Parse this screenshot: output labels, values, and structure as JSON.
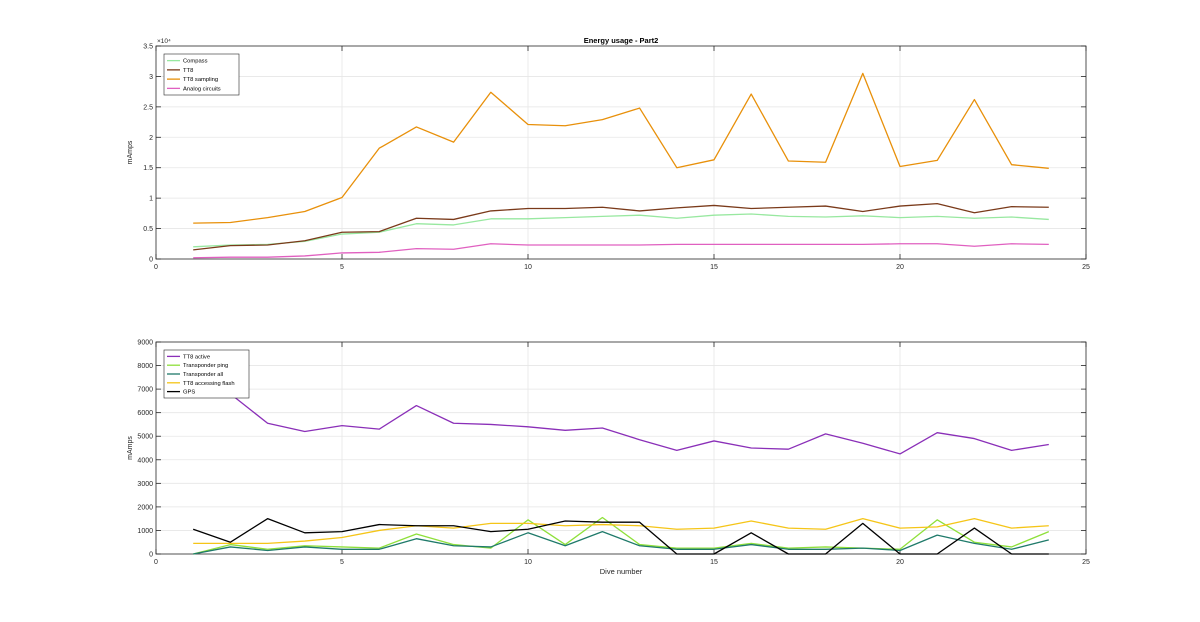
{
  "chart_data": [
    {
      "type": "line",
      "title": "Energy usage - Part2",
      "xlabel": "",
      "ylabel": "mAmps",
      "xlim": [
        0,
        25
      ],
      "ylim": [
        0,
        35000
      ],
      "x_ticks": [
        0,
        5,
        10,
        15,
        20,
        25
      ],
      "y_ticks": [
        0,
        5000,
        10000,
        15000,
        20000,
        25000,
        30000,
        35000
      ],
      "x_tick_labels": [
        "0",
        "5",
        "10",
        "15",
        "20",
        "25"
      ],
      "y_tick_labels": [
        "0",
        "0.5",
        "1",
        "1.5",
        "2",
        "2.5",
        "3",
        "3.5"
      ],
      "y_exponent_label": "×10⁴",
      "grid": true,
      "legend_position": "top-left",
      "x": [
        1,
        2,
        3,
        4,
        5,
        6,
        7,
        8,
        9,
        10,
        11,
        12,
        13,
        14,
        15,
        16,
        17,
        18,
        19,
        20,
        21,
        22,
        23,
        24
      ],
      "series": [
        {
          "name": "Compass",
          "color": "#98e8a0",
          "values": [
            2000,
            2300,
            2400,
            2900,
            4100,
            4400,
            5800,
            5600,
            6600,
            6600,
            6800,
            7000,
            7200,
            6700,
            7200,
            7400,
            7000,
            6900,
            7100,
            6800,
            7000,
            6700,
            6900,
            6500
          ]
        },
        {
          "name": "TT8",
          "color": "#7a3a1a",
          "values": [
            1500,
            2200,
            2300,
            3000,
            4400,
            4500,
            6700,
            6500,
            7900,
            8300,
            8300,
            8500,
            7900,
            8400,
            8800,
            8300,
            8500,
            8700,
            7800,
            8700,
            9100,
            7600,
            8600,
            8500
          ]
        },
        {
          "name": "TT8 sampling",
          "color": "#e8900a",
          "values": [
            5900,
            6000,
            6800,
            7800,
            10100,
            18200,
            21700,
            19200,
            27400,
            22100,
            21900,
            22900,
            24800,
            15000,
            16300,
            27100,
            16100,
            15900,
            30500,
            15200,
            16200,
            26200,
            15500,
            14900
          ]
        },
        {
          "name": "Analog circuits",
          "color": "#e060c0",
          "values": [
            200,
            300,
            300,
            500,
            1000,
            1100,
            1700,
            1600,
            2500,
            2300,
            2300,
            2300,
            2300,
            2400,
            2400,
            2400,
            2400,
            2400,
            2400,
            2500,
            2500,
            2100,
            2500,
            2400
          ]
        }
      ]
    },
    {
      "type": "line",
      "title": "",
      "xlabel": "Dive number",
      "ylabel": "mAmps",
      "xlim": [
        0,
        25
      ],
      "ylim": [
        0,
        9000
      ],
      "x_ticks": [
        0,
        5,
        10,
        15,
        20,
        25
      ],
      "y_ticks": [
        0,
        1000,
        2000,
        3000,
        4000,
        5000,
        6000,
        7000,
        8000,
        9000
      ],
      "x_tick_labels": [
        "0",
        "5",
        "10",
        "15",
        "20",
        "25"
      ],
      "y_tick_labels": [
        "0",
        "1000",
        "2000",
        "3000",
        "4000",
        "5000",
        "6000",
        "7000",
        "8000",
        "9000"
      ],
      "grid": true,
      "legend_position": "top-left",
      "x": [
        1,
        2,
        3,
        4,
        5,
        6,
        7,
        8,
        9,
        10,
        11,
        12,
        13,
        14,
        15,
        16,
        17,
        18,
        19,
        20,
        21,
        22,
        23,
        24
      ],
      "series": [
        {
          "name": "TT8 active",
          "color": "#8a2fb8",
          "values": [
            7200,
            6800,
            5550,
            5200,
            5450,
            5300,
            6300,
            5550,
            5500,
            5400,
            5250,
            5350,
            4850,
            4400,
            4800,
            4500,
            4450,
            5100,
            4700,
            4250,
            5150,
            4900,
            4400,
            4650
          ]
        },
        {
          "name": "Transponder ping",
          "color": "#8ee03a",
          "values": [
            0,
            400,
            200,
            350,
            300,
            250,
            850,
            400,
            250,
            1450,
            400,
            1550,
            400,
            250,
            250,
            450,
            250,
            300,
            250,
            200,
            1450,
            500,
            300,
            950
          ]
        },
        {
          "name": "Transponder all",
          "color": "#1f7a6a",
          "values": [
            0,
            300,
            150,
            300,
            200,
            200,
            650,
            350,
            300,
            900,
            350,
            950,
            350,
            200,
            200,
            400,
            200,
            200,
            250,
            150,
            800,
            450,
            200,
            600
          ]
        },
        {
          "name": "TT8 accessing flash",
          "color": "#f5c518",
          "values": [
            450,
            450,
            450,
            550,
            700,
            1000,
            1200,
            1100,
            1300,
            1300,
            1200,
            1250,
            1200,
            1050,
            1100,
            1400,
            1100,
            1050,
            1500,
            1100,
            1150,
            1500,
            1100,
            1200
          ]
        },
        {
          "name": "GPS",
          "color": "#000000",
          "values": [
            1050,
            500,
            1500,
            900,
            950,
            1250,
            1200,
            1200,
            950,
            1050,
            1400,
            1350,
            1350,
            0,
            0,
            900,
            0,
            0,
            1300,
            0,
            0,
            1100,
            0,
            0
          ]
        }
      ]
    }
  ]
}
